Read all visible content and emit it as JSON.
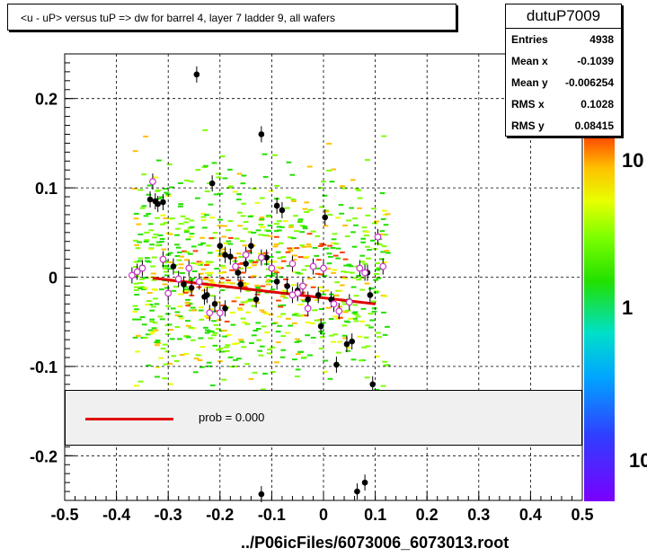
{
  "title": "<u - uP>       versus  tuP =>  dw for barrel 4, layer 7 ladder 9, all wafers",
  "stats": {
    "name": "dutuP7009",
    "rows": [
      {
        "key": "Entries",
        "value": "4938"
      },
      {
        "key": "Mean x",
        "value": "-0.1039"
      },
      {
        "key": "Mean y",
        "value": "-0.006254"
      },
      {
        "key": "RMS x",
        "value": "0.1028"
      },
      {
        "key": "RMS y",
        "value": "0.08415"
      }
    ]
  },
  "legend": {
    "entry": "prob = 0.000",
    "line_color": "#e00000"
  },
  "footer": "../P06icFiles/6073006_6073013.root",
  "palette_labels": [
    "10",
    "1",
    "10"
  ],
  "chart_data": {
    "type": "scatter",
    "title": "<u - uP>       versus  tuP =>  dw for barrel 4, layer 7 ladder 9, all wafers",
    "xlabel": "",
    "ylabel": "",
    "xlim": [
      -0.5,
      0.5
    ],
    "ylim": [
      -0.25,
      0.25
    ],
    "x_ticks": [
      -0.5,
      -0.4,
      -0.3,
      -0.2,
      -0.1,
      0,
      0.1,
      0.2,
      0.3,
      0.4,
      0.5
    ],
    "x_tick_labels": [
      "-0.5",
      "-0.4",
      "-0.3",
      "-0.2",
      "-0.1",
      "0",
      "0.1",
      "0.2",
      "0.3",
      "0.4",
      "0.5"
    ],
    "y_ticks": [
      -0.2,
      -0.1,
      0,
      0.1,
      0.2
    ],
    "y_tick_labels": [
      "-0.2",
      "-0.1",
      "0",
      "0.1",
      "0.2"
    ],
    "grid": true,
    "series": [
      {
        "marker": "filled-circle",
        "color": "#000000",
        "points": [
          [
            -0.325,
            0.085
          ],
          [
            -0.335,
            0.087
          ],
          [
            -0.32,
            0.082
          ],
          [
            -0.31,
            0.084
          ],
          [
            -0.245,
            0.227
          ],
          [
            -0.215,
            0.105
          ],
          [
            -0.12,
            0.16
          ],
          [
            -0.09,
            0.08
          ],
          [
            -0.08,
            0.075
          ],
          [
            0.003,
            0.067
          ],
          [
            -0.2,
            0.035
          ],
          [
            -0.19,
            0.025
          ],
          [
            -0.18,
            0.023
          ],
          [
            -0.165,
            0.005
          ],
          [
            -0.15,
            0.015
          ],
          [
            -0.14,
            0.035
          ],
          [
            -0.11,
            0.022
          ],
          [
            -0.29,
            0.012
          ],
          [
            -0.27,
            -0.008
          ],
          [
            -0.255,
            -0.012
          ],
          [
            -0.23,
            -0.022
          ],
          [
            -0.225,
            -0.02
          ],
          [
            -0.21,
            -0.03
          ],
          [
            -0.19,
            -0.035
          ],
          [
            -0.16,
            -0.008
          ],
          [
            -0.13,
            -0.025
          ],
          [
            -0.09,
            -0.005
          ],
          [
            -0.07,
            -0.01
          ],
          [
            -0.05,
            -0.015
          ],
          [
            -0.03,
            -0.025
          ],
          [
            -0.01,
            -0.02
          ],
          [
            0.015,
            -0.025
          ],
          [
            -0.005,
            -0.055
          ],
          [
            0.025,
            -0.098
          ],
          [
            0.045,
            -0.075
          ],
          [
            0.055,
            -0.072
          ],
          [
            0.085,
            0.005
          ],
          [
            0.09,
            -0.02
          ],
          [
            0.095,
            -0.12
          ],
          [
            0.065,
            -0.24
          ],
          [
            0.08,
            -0.23
          ],
          [
            -0.12,
            -0.243
          ]
        ]
      },
      {
        "marker": "open-circle",
        "color": "#cc33cc",
        "points": [
          [
            -0.33,
            0.107
          ],
          [
            -0.35,
            0.01
          ],
          [
            -0.36,
            0.006
          ],
          [
            -0.37,
            0.002
          ],
          [
            -0.31,
            0.02
          ],
          [
            -0.28,
            -0.002
          ],
          [
            -0.26,
            0.01
          ],
          [
            -0.3,
            -0.018
          ],
          [
            -0.24,
            -0.005
          ],
          [
            -0.22,
            -0.04
          ],
          [
            -0.2,
            -0.04
          ],
          [
            -0.17,
            0.012
          ],
          [
            -0.15,
            0.025
          ],
          [
            -0.12,
            0.022
          ],
          [
            -0.1,
            0.01
          ],
          [
            -0.06,
            0.015
          ],
          [
            -0.05,
            -0.018
          ],
          [
            -0.04,
            -0.01
          ],
          [
            -0.02,
            0.012
          ],
          [
            0.0,
            0.01
          ],
          [
            -0.03,
            -0.035
          ],
          [
            0.02,
            -0.03
          ],
          [
            0.03,
            -0.038
          ],
          [
            0.05,
            -0.028
          ],
          [
            0.07,
            0.01
          ],
          [
            0.08,
            0.005
          ],
          [
            0.105,
            0.045
          ],
          [
            0.115,
            0.012
          ],
          [
            -0.06,
            -0.02
          ]
        ]
      }
    ],
    "fit_line": {
      "color": "#e00000",
      "x": [
        -0.33,
        0.1
      ],
      "y": [
        -0.001,
        -0.03
      ]
    },
    "colorbar": {
      "labels": [
        "10",
        "1",
        "10"
      ],
      "log": true
    }
  }
}
